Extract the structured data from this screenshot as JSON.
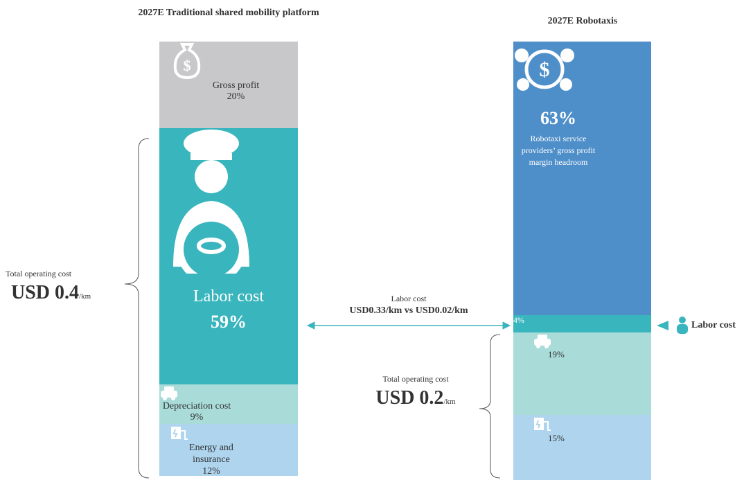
{
  "left": {
    "title": "2027E Traditional shared mobility platform",
    "segments": [
      {
        "name": "Gross profit",
        "value": 20,
        "value_label": "20%",
        "color": "#c8c8ca"
      },
      {
        "name": "Labor cost",
        "value": 59,
        "value_label": "59%",
        "color": "#39b5bd"
      },
      {
        "name": "Depreciation cost",
        "value": 9,
        "value_label": "9%",
        "color": "#a9dcd9"
      },
      {
        "name": "Energy and insurance",
        "value": 12,
        "value_label": "12%",
        "color": "#aed4ee"
      }
    ],
    "total": {
      "label": "Total operating cost",
      "amount": "USD 0.4",
      "unit": "/km"
    }
  },
  "right": {
    "title": "2027E Robotaxis",
    "segments": [
      {
        "name": "Robotaxi service providers’ gross profit margin headroom",
        "value": 63,
        "value_label": "63%",
        "color": "#4f8fc9"
      },
      {
        "value": 4,
        "value_label": "4%",
        "color": "#39b5bd"
      },
      {
        "value": 19,
        "value_label": "19%",
        "color": "#a9dcd9"
      },
      {
        "value": 15,
        "value_label": "15%",
        "color": "#aed4ee"
      }
    ],
    "total": {
      "label": "Total operating cost",
      "amount": "USD 0.2",
      "unit": "/km"
    },
    "side_label": "Labor cost"
  },
  "comparison": {
    "label": "Labor cost",
    "text": "USD0.33/km vs USD0.02/km"
  }
}
